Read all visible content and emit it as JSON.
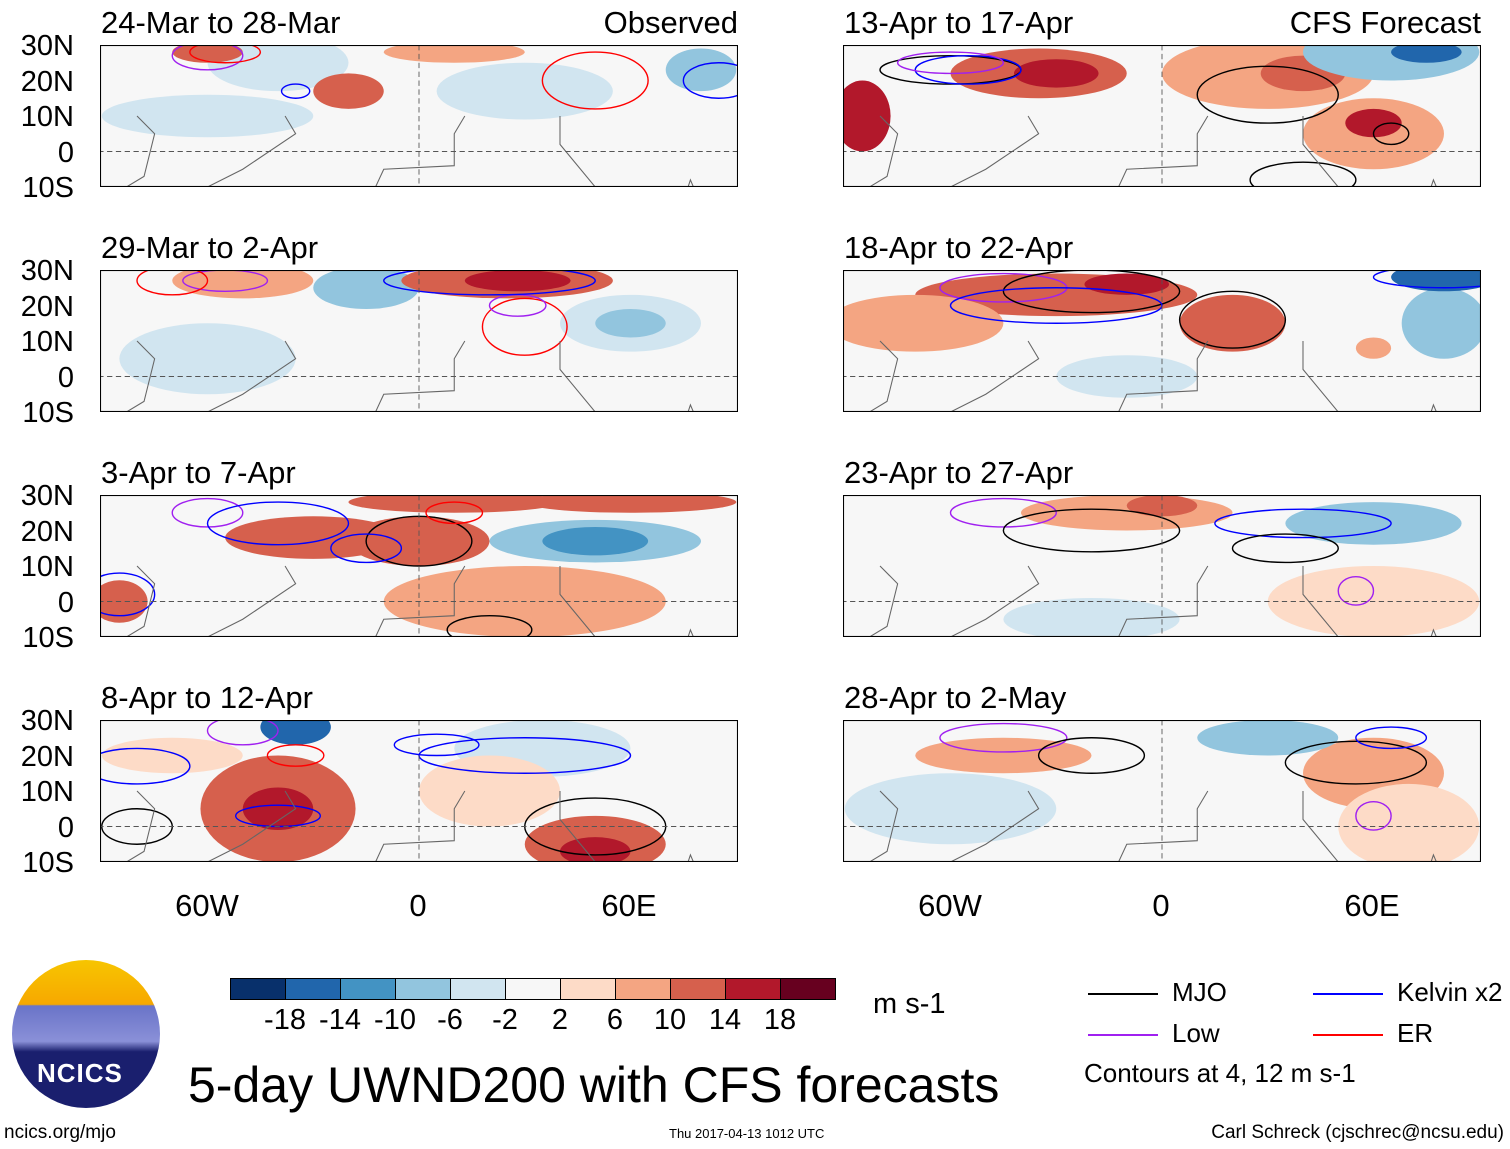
{
  "panels": [
    {
      "title": "24-Mar to 28-Mar",
      "tag": "Observed"
    },
    {
      "title": "13-Apr to 17-Apr",
      "tag": "CFS Forecast"
    },
    {
      "title": "29-Mar to 2-Apr",
      "tag": ""
    },
    {
      "title": "18-Apr to 22-Apr",
      "tag": ""
    },
    {
      "title": "3-Apr to 7-Apr",
      "tag": ""
    },
    {
      "title": "23-Apr to 27-Apr",
      "tag": ""
    },
    {
      "title": "8-Apr to 12-Apr",
      "tag": ""
    },
    {
      "title": "28-Apr to 2-May",
      "tag": ""
    }
  ],
  "lat_labels": [
    "30N",
    "20N",
    "10N",
    "0",
    "10S"
  ],
  "lon_labels": [
    "60W",
    "0",
    "60E"
  ],
  "colorbar": {
    "colors": [
      "#08306b",
      "#2166ac",
      "#4393c3",
      "#92c5de",
      "#d1e5f0",
      "#f7f7f7",
      "#fddbc7",
      "#f4a582",
      "#d6604d",
      "#b2182b",
      "#67001f"
    ],
    "labels": [
      "-18",
      "-14",
      "-10",
      "-6",
      "-2",
      "2",
      "6",
      "10",
      "14",
      "18"
    ],
    "units": "m s-1"
  },
  "legend": {
    "items": [
      {
        "label": "MJO",
        "color": "#000000"
      },
      {
        "label": "Kelvin x2",
        "color": "#0000ff"
      },
      {
        "label": "Low",
        "color": "#a020f0"
      },
      {
        "label": "ER",
        "color": "#ff0000"
      }
    ],
    "note": "Contours at 4, 12 m s-1"
  },
  "logo_text": "NCICS",
  "title": "5-day UWND200 with CFS forecasts",
  "footer": {
    "left": "ncics.org/mjo",
    "center": "Thu 2017-04-13 1012 UTC",
    "right": "Carl Schreck (cjschrec@ncsu.edu)"
  }
}
